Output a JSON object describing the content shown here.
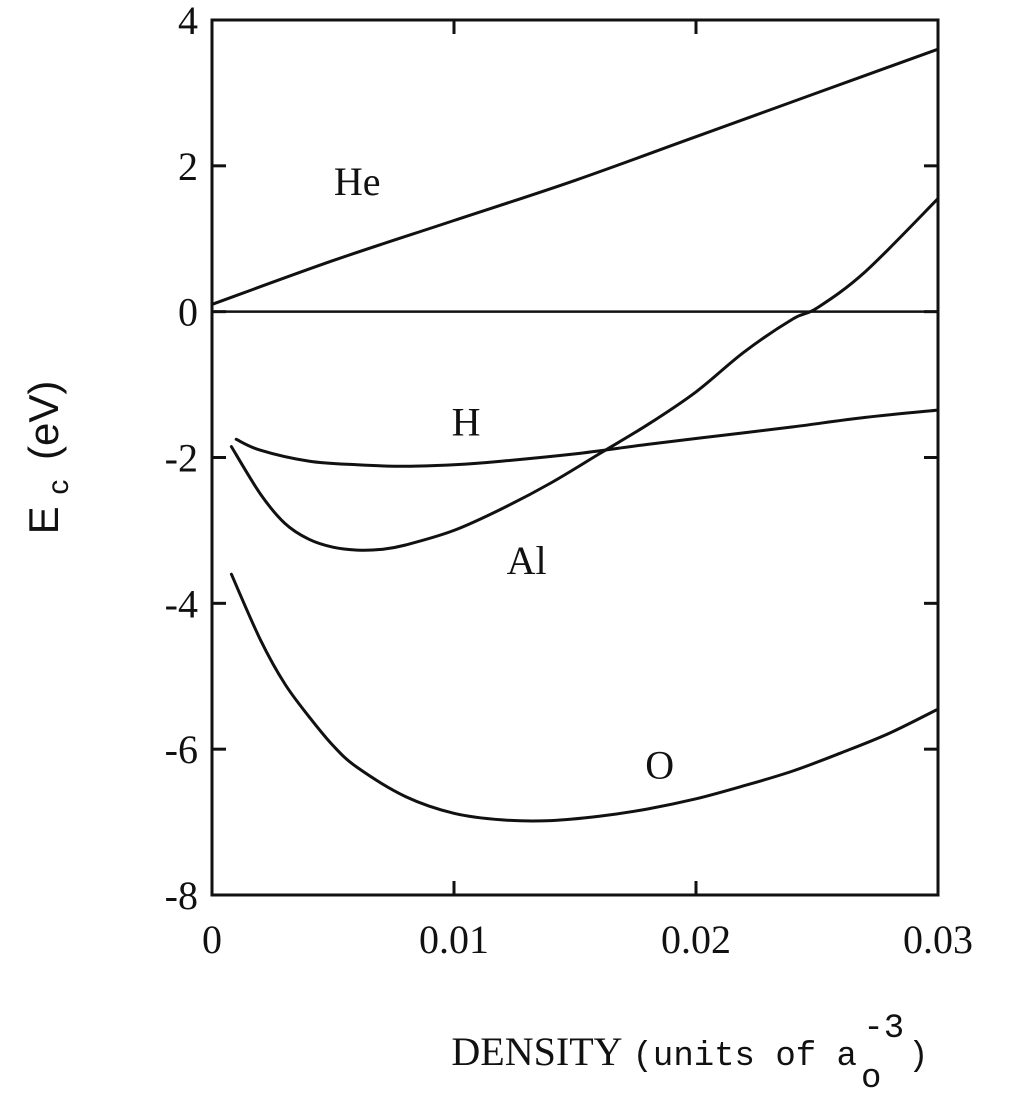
{
  "chart_data": {
    "type": "line",
    "xlabel": "DENSITY",
    "xlabel_units_prefix": "(units of a",
    "xlabel_units_subscript": "o",
    "xlabel_units_superscript": "-3",
    "xlabel_units_suffix": ")",
    "ylabel_main": "E",
    "ylabel_subscript": "c",
    "ylabel_units": "(eV)",
    "xlim": [
      0,
      0.03
    ],
    "ylim": [
      -8,
      4
    ],
    "x_ticks": [
      0,
      0.01,
      0.02,
      0.03
    ],
    "x_tick_labels": [
      "0",
      "0.01",
      "0.02",
      "0.03"
    ],
    "y_ticks": [
      -8,
      -6,
      -4,
      -2,
      0,
      2,
      4
    ],
    "y_tick_labels": [
      "-8",
      "-6",
      "-4",
      "-2",
      "0",
      "2",
      "4"
    ],
    "zero_line": true,
    "grid": false,
    "series": [
      {
        "name": "He",
        "x": [
          0,
          0.005,
          0.01,
          0.015,
          0.02,
          0.025,
          0.03
        ],
        "y": [
          0.1,
          0.7,
          1.25,
          1.8,
          2.4,
          3.0,
          3.6
        ]
      },
      {
        "name": "H",
        "x": [
          0.001,
          0.002,
          0.004,
          0.006,
          0.008,
          0.01,
          0.012,
          0.015,
          0.018,
          0.021,
          0.024,
          0.027,
          0.03
        ],
        "y": [
          -1.75,
          -1.9,
          -2.05,
          -2.1,
          -2.12,
          -2.1,
          -2.05,
          -1.95,
          -1.82,
          -1.7,
          -1.58,
          -1.45,
          -1.35
        ]
      },
      {
        "name": "Al",
        "x": [
          0.0008,
          0.002,
          0.003,
          0.004,
          0.005,
          0.006,
          0.007,
          0.008,
          0.01,
          0.012,
          0.014,
          0.016,
          0.018,
          0.02,
          0.022,
          0.024,
          0.025,
          0.027,
          0.03
        ],
        "y": [
          -1.85,
          -2.5,
          -2.9,
          -3.12,
          -3.23,
          -3.27,
          -3.26,
          -3.2,
          -3.0,
          -2.7,
          -2.35,
          -1.95,
          -1.55,
          -1.1,
          -0.55,
          -0.1,
          0.05,
          0.55,
          1.55
        ]
      },
      {
        "name": "O",
        "x": [
          0.0008,
          0.002,
          0.003,
          0.004,
          0.005,
          0.006,
          0.008,
          0.01,
          0.012,
          0.014,
          0.016,
          0.018,
          0.02,
          0.022,
          0.024,
          0.026,
          0.028,
          0.03
        ],
        "y": [
          -3.6,
          -4.5,
          -5.1,
          -5.55,
          -5.95,
          -6.25,
          -6.65,
          -6.88,
          -6.97,
          -6.98,
          -6.92,
          -6.82,
          -6.68,
          -6.5,
          -6.3,
          -6.05,
          -5.78,
          -5.45
        ]
      }
    ],
    "series_label_positions": {
      "He": [
        0.006,
        1.6
      ],
      "H": [
        0.0105,
        -1.7
      ],
      "Al": [
        0.013,
        -3.6
      ],
      "O": [
        0.0185,
        -6.4
      ]
    }
  }
}
